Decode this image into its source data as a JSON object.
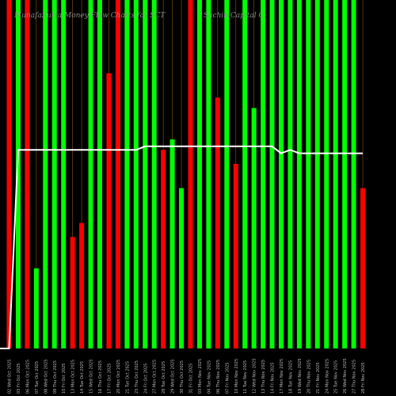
{
  "chart_data": {
    "type": "bar",
    "title_left": "MunafaSutra Money Flow Charts for SCT",
    "title_right": "Sachin Capital C",
    "colors": {
      "up": "#00ff00",
      "down": "#ff0000",
      "line": "#ffffff",
      "background": "#000000",
      "vline": "#8a5a10"
    },
    "categories": [
      "02 Wed Oct 2025",
      "03 Fri Oct 2025",
      "06 Mon Oct 2025",
      "07 Tue Oct 2025",
      "08 Wed Oct 2025",
      "09 Thu Oct 2025",
      "10 Fri Oct 2025",
      "13 Mon Oct 2025",
      "14 Tue Oct 2025",
      "15 Wed Oct 2025",
      "16 Thu Oct 2025",
      "17 Fri Oct 2025",
      "20 Mon Oct 2025",
      "21 Tue Oct 2025",
      "23 Thu Oct 2025",
      "24 Fri Oct 2025",
      "27 Mon Oct 2025",
      "28 Tue Oct 2025",
      "29 Wed Oct 2025",
      "30 Thu Oct 2025",
      "31 Fri Oct 2025",
      "03 Mon Nov 2025",
      "04 Tue Nov 2025",
      "06 Thu Nov 2025",
      "07 Fri Nov 2025",
      "10 Mon Nov 2025",
      "11 Tue Nov 2025",
      "12 Wed Nov 2025",
      "13 Thu Nov 2025",
      "14 Fri Nov 2025",
      "17 Mon Nov 2025",
      "18 Tue Nov 2025",
      "19 Wed Nov 2025",
      "20 Thu Nov 2025",
      "21 Fri Nov 2025",
      "24 Mon Nov 2025",
      "25 Tue Nov 2025",
      "26 Wed Nov 2025",
      "27 Thu Nov 2025",
      "28 Fri Nov 2025"
    ],
    "bars": [
      {
        "dir": "down",
        "value": 100
      },
      {
        "dir": "up",
        "value": 100
      },
      {
        "dir": "down",
        "value": 100
      },
      {
        "dir": "up",
        "value": 23
      },
      {
        "dir": "up",
        "value": 100
      },
      {
        "dir": "up",
        "value": 100
      },
      {
        "dir": "up",
        "value": 100
      },
      {
        "dir": "down",
        "value": 32
      },
      {
        "dir": "down",
        "value": 36
      },
      {
        "dir": "up",
        "value": 100
      },
      {
        "dir": "up",
        "value": 100
      },
      {
        "dir": "down",
        "value": 79
      },
      {
        "dir": "down",
        "value": 100
      },
      {
        "dir": "up",
        "value": 100
      },
      {
        "dir": "up",
        "value": 100
      },
      {
        "dir": "up",
        "value": 100
      },
      {
        "dir": "up",
        "value": 100
      },
      {
        "dir": "down",
        "value": 57
      },
      {
        "dir": "up",
        "value": 60
      },
      {
        "dir": "up",
        "value": 46
      },
      {
        "dir": "down",
        "value": 100
      },
      {
        "dir": "up",
        "value": 100
      },
      {
        "dir": "up",
        "value": 100
      },
      {
        "dir": "down",
        "value": 72
      },
      {
        "dir": "up",
        "value": 100
      },
      {
        "dir": "down",
        "value": 53
      },
      {
        "dir": "up",
        "value": 100
      },
      {
        "dir": "up",
        "value": 69
      },
      {
        "dir": "up",
        "value": 100
      },
      {
        "dir": "up",
        "value": 100
      },
      {
        "dir": "up",
        "value": 100
      },
      {
        "dir": "up",
        "value": 100
      },
      {
        "dir": "up",
        "value": 100
      },
      {
        "dir": "up",
        "value": 100
      },
      {
        "dir": "up",
        "value": 100
      },
      {
        "dir": "up",
        "value": 100
      },
      {
        "dir": "up",
        "value": 100
      },
      {
        "dir": "up",
        "value": 100
      },
      {
        "dir": "up",
        "value": 100
      },
      {
        "dir": "down",
        "value": 46
      }
    ],
    "line": [
      0,
      57,
      57,
      57,
      57,
      57,
      57,
      57,
      57,
      57,
      57,
      57,
      57,
      57,
      57,
      58,
      58,
      58,
      58,
      58,
      58,
      58,
      58,
      58,
      58,
      58,
      58,
      58,
      58,
      58,
      56,
      57,
      56,
      56,
      56,
      56,
      56,
      56,
      56,
      56
    ],
    "ylim": [
      0,
      100
    ]
  }
}
